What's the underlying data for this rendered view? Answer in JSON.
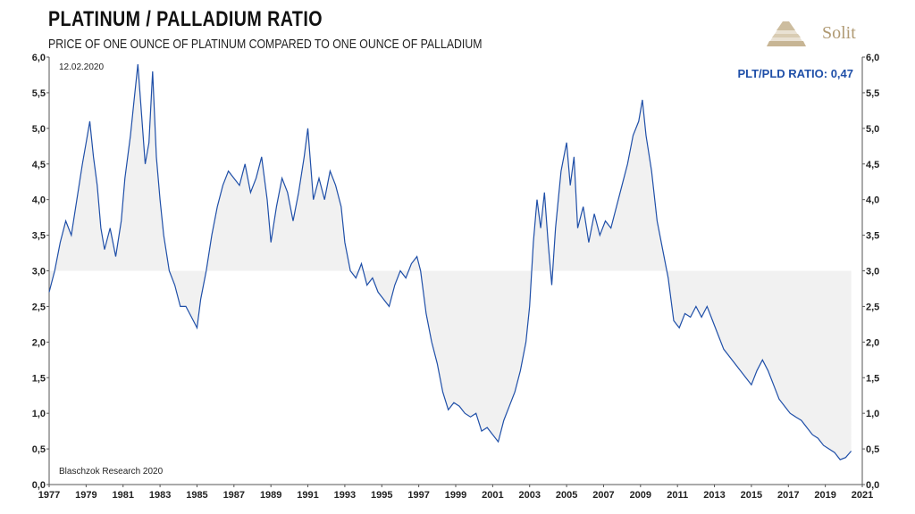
{
  "header": {
    "title": "PLATINUM / PALLADIUM RATIO",
    "subtitle": "PRICE OF ONE OUNCE OF PLATINUM COMPARED TO ONE OUNCE OF PALLADIUM",
    "logo_text": "Solit"
  },
  "chart_data": {
    "type": "line",
    "date_label": "12.02.2020",
    "source": "Blaschzok Research 2020",
    "ratio_label": "PLT/PLD RATIO: 0,47",
    "ylim": [
      0,
      6
    ],
    "xlim": [
      1977,
      2021
    ],
    "baseline": 3.0,
    "yticks": [
      "0,0",
      "0,5",
      "1,0",
      "1,5",
      "2,0",
      "2,5",
      "3,0",
      "3,5",
      "4,0",
      "4,5",
      "5,0",
      "5,5",
      "6,0"
    ],
    "xticks": [
      "1977",
      "1979",
      "1981",
      "1983",
      "1985",
      "1987",
      "1989",
      "1991",
      "1993",
      "1995",
      "1997",
      "1999",
      "2001",
      "2003",
      "2005",
      "2007",
      "2009",
      "2011",
      "2013",
      "2015",
      "2017",
      "2019",
      "2021"
    ],
    "line_color": "#1f4fa8",
    "fill_color": "#f1f1f1",
    "series": [
      {
        "values": [
          [
            1977.0,
            2.7
          ],
          [
            1977.3,
            3.0
          ],
          [
            1977.6,
            3.4
          ],
          [
            1977.9,
            3.7
          ],
          [
            1978.2,
            3.5
          ],
          [
            1978.5,
            4.0
          ],
          [
            1978.8,
            4.5
          ],
          [
            1979.0,
            4.8
          ],
          [
            1979.2,
            5.1
          ],
          [
            1979.4,
            4.6
          ],
          [
            1979.6,
            4.2
          ],
          [
            1979.8,
            3.6
          ],
          [
            1980.0,
            3.3
          ],
          [
            1980.3,
            3.6
          ],
          [
            1980.6,
            3.2
          ],
          [
            1980.9,
            3.7
          ],
          [
            1981.1,
            4.3
          ],
          [
            1981.4,
            4.9
          ],
          [
            1981.6,
            5.4
          ],
          [
            1981.8,
            5.9
          ],
          [
            1982.0,
            5.2
          ],
          [
            1982.2,
            4.5
          ],
          [
            1982.4,
            4.8
          ],
          [
            1982.6,
            5.8
          ],
          [
            1982.8,
            4.6
          ],
          [
            1983.0,
            4.0
          ],
          [
            1983.2,
            3.5
          ],
          [
            1983.5,
            3.0
          ],
          [
            1983.8,
            2.8
          ],
          [
            1984.1,
            2.5
          ],
          [
            1984.4,
            2.5
          ],
          [
            1984.7,
            2.35
          ],
          [
            1985.0,
            2.2
          ],
          [
            1985.2,
            2.6
          ],
          [
            1985.5,
            3.0
          ],
          [
            1985.8,
            3.5
          ],
          [
            1986.1,
            3.9
          ],
          [
            1986.4,
            4.2
          ],
          [
            1986.7,
            4.4
          ],
          [
            1987.0,
            4.3
          ],
          [
            1987.3,
            4.2
          ],
          [
            1987.6,
            4.5
          ],
          [
            1987.9,
            4.1
          ],
          [
            1988.2,
            4.3
          ],
          [
            1988.5,
            4.6
          ],
          [
            1988.8,
            4.0
          ],
          [
            1989.0,
            3.4
          ],
          [
            1989.3,
            3.9
          ],
          [
            1989.6,
            4.3
          ],
          [
            1989.9,
            4.1
          ],
          [
            1990.2,
            3.7
          ],
          [
            1990.5,
            4.1
          ],
          [
            1990.8,
            4.6
          ],
          [
            1991.0,
            5.0
          ],
          [
            1991.3,
            4.0
          ],
          [
            1991.6,
            4.3
          ],
          [
            1991.9,
            4.0
          ],
          [
            1992.2,
            4.4
          ],
          [
            1992.5,
            4.2
          ],
          [
            1992.8,
            3.9
          ],
          [
            1993.0,
            3.4
          ],
          [
            1993.3,
            3.0
          ],
          [
            1993.6,
            2.9
          ],
          [
            1993.9,
            3.1
          ],
          [
            1994.2,
            2.8
          ],
          [
            1994.5,
            2.9
          ],
          [
            1994.8,
            2.7
          ],
          [
            1995.1,
            2.6
          ],
          [
            1995.4,
            2.5
          ],
          [
            1995.7,
            2.8
          ],
          [
            1996.0,
            3.0
          ],
          [
            1996.3,
            2.9
          ],
          [
            1996.6,
            3.1
          ],
          [
            1996.9,
            3.2
          ],
          [
            1997.1,
            3.0
          ],
          [
            1997.4,
            2.4
          ],
          [
            1997.7,
            2.0
          ],
          [
            1998.0,
            1.7
          ],
          [
            1998.3,
            1.3
          ],
          [
            1998.6,
            1.05
          ],
          [
            1998.9,
            1.15
          ],
          [
            1999.2,
            1.1
          ],
          [
            1999.5,
            1.0
          ],
          [
            1999.8,
            0.95
          ],
          [
            2000.1,
            1.0
          ],
          [
            2000.4,
            0.75
          ],
          [
            2000.7,
            0.8
          ],
          [
            2001.0,
            0.7
          ],
          [
            2001.3,
            0.6
          ],
          [
            2001.6,
            0.9
          ],
          [
            2001.9,
            1.1
          ],
          [
            2002.2,
            1.3
          ],
          [
            2002.5,
            1.6
          ],
          [
            2002.8,
            2.0
          ],
          [
            2003.0,
            2.5
          ],
          [
            2003.2,
            3.4
          ],
          [
            2003.4,
            4.0
          ],
          [
            2003.6,
            3.6
          ],
          [
            2003.8,
            4.1
          ],
          [
            2004.0,
            3.4
          ],
          [
            2004.2,
            2.8
          ],
          [
            2004.4,
            3.6
          ],
          [
            2004.7,
            4.4
          ],
          [
            2005.0,
            4.8
          ],
          [
            2005.2,
            4.2
          ],
          [
            2005.4,
            4.6
          ],
          [
            2005.6,
            3.6
          ],
          [
            2005.9,
            3.9
          ],
          [
            2006.2,
            3.4
          ],
          [
            2006.5,
            3.8
          ],
          [
            2006.8,
            3.5
          ],
          [
            2007.1,
            3.7
          ],
          [
            2007.4,
            3.6
          ],
          [
            2007.7,
            3.9
          ],
          [
            2008.0,
            4.2
          ],
          [
            2008.3,
            4.5
          ],
          [
            2008.6,
            4.9
          ],
          [
            2008.9,
            5.1
          ],
          [
            2009.1,
            5.4
          ],
          [
            2009.3,
            4.9
          ],
          [
            2009.6,
            4.4
          ],
          [
            2009.9,
            3.7
          ],
          [
            2010.2,
            3.3
          ],
          [
            2010.5,
            2.9
          ],
          [
            2010.8,
            2.3
          ],
          [
            2011.1,
            2.2
          ],
          [
            2011.4,
            2.4
          ],
          [
            2011.7,
            2.35
          ],
          [
            2012.0,
            2.5
          ],
          [
            2012.3,
            2.35
          ],
          [
            2012.6,
            2.5
          ],
          [
            2012.9,
            2.3
          ],
          [
            2013.2,
            2.1
          ],
          [
            2013.5,
            1.9
          ],
          [
            2013.8,
            1.8
          ],
          [
            2014.1,
            1.7
          ],
          [
            2014.4,
            1.6
          ],
          [
            2014.7,
            1.5
          ],
          [
            2015.0,
            1.4
          ],
          [
            2015.3,
            1.6
          ],
          [
            2015.6,
            1.75
          ],
          [
            2015.9,
            1.6
          ],
          [
            2016.2,
            1.4
          ],
          [
            2016.5,
            1.2
          ],
          [
            2016.8,
            1.1
          ],
          [
            2017.1,
            1.0
          ],
          [
            2017.4,
            0.95
          ],
          [
            2017.7,
            0.9
          ],
          [
            2018.0,
            0.8
          ],
          [
            2018.3,
            0.7
          ],
          [
            2018.6,
            0.65
          ],
          [
            2018.9,
            0.55
          ],
          [
            2019.2,
            0.5
          ],
          [
            2019.5,
            0.45
          ],
          [
            2019.8,
            0.35
          ],
          [
            2020.1,
            0.38
          ],
          [
            2020.4,
            0.47
          ]
        ]
      }
    ]
  }
}
